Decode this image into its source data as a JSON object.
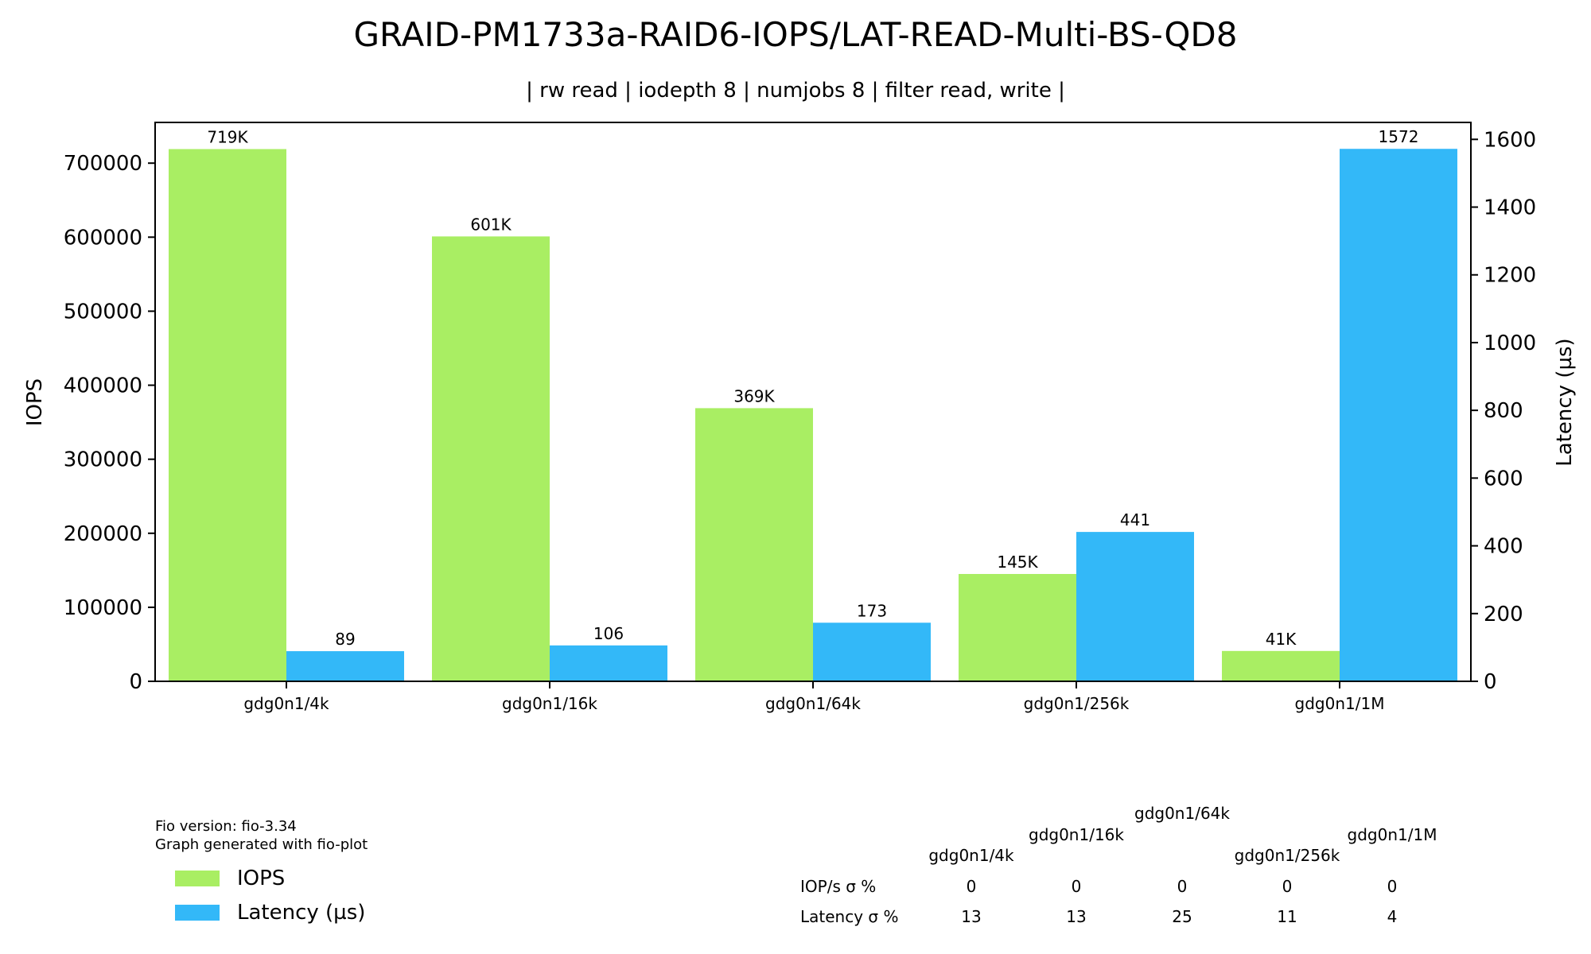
{
  "chart_data": {
    "type": "bar",
    "title": "GRAID-PM1733a-RAID6-IOPS/LAT-READ-Multi-BS-QD8",
    "subtitle": "| rw read | iodepth 8 | numjobs 8 | filter read, write |",
    "categories": [
      "gdg0n1/4k",
      "gdg0n1/16k",
      "gdg0n1/64k",
      "gdg0n1/256k",
      "gdg0n1/1M"
    ],
    "series": [
      {
        "name": "IOPS",
        "axis": "left",
        "color": "#a9ee63",
        "values": [
          719000,
          601000,
          369000,
          145000,
          41000
        ],
        "labels": [
          "719K",
          "601K",
          "369K",
          "145K",
          "41K"
        ]
      },
      {
        "name": "Latency (µs)",
        "axis": "right",
        "color": "#33b8f8",
        "values": [
          89,
          106,
          173,
          441,
          1572
        ],
        "labels": [
          "89",
          "106",
          "173",
          "441",
          "1572"
        ]
      }
    ],
    "ylabel": "IOPS",
    "y2label": "Latency (µs)",
    "ylim": [
      0,
      755000
    ],
    "yticks": [
      "0",
      "100000",
      "200000",
      "300000",
      "400000",
      "500000",
      "600000",
      "700000"
    ],
    "ytick_values": [
      0,
      100000,
      200000,
      300000,
      400000,
      500000,
      600000,
      700000
    ],
    "y2lim": [
      0,
      1650
    ],
    "y2ticks": [
      "0",
      "200",
      "400",
      "600",
      "800",
      "1000",
      "1200",
      "1400",
      "1600"
    ],
    "y2tick_values": [
      0,
      200,
      400,
      600,
      800,
      1000,
      1200,
      1400,
      1600
    ],
    "grid": false,
    "legend_position": "bottom-left"
  },
  "footnote": {
    "line1": "Fio version: fio-3.34",
    "line2": "Graph generated with fio-plot"
  },
  "stats_table": {
    "columns": [
      "gdg0n1/4k",
      "gdg0n1/16k",
      "gdg0n1/64k",
      "gdg0n1/256k",
      "gdg0n1/1M"
    ],
    "rows": [
      {
        "label": "IOP/s σ %",
        "values": [
          "0",
          "0",
          "0",
          "0",
          "0"
        ]
      },
      {
        "label": "Latency σ %",
        "values": [
          "13",
          "13",
          "25",
          "11",
          "4"
        ]
      }
    ]
  }
}
